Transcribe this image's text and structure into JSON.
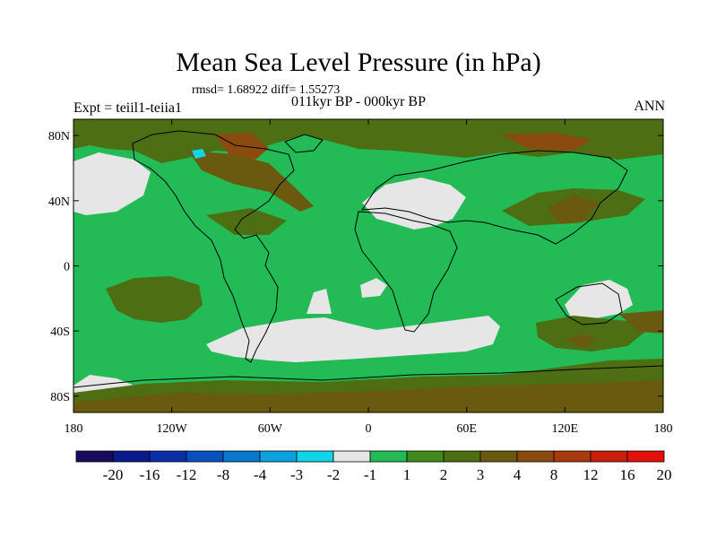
{
  "title": "Mean Sea Level Pressure (in hPa)",
  "stats": "rmsd= 1.68922 diff= 1.55273",
  "subtitle": "011kyr BP - 000kyr BP",
  "left_label": "Expt = teiil1-teiia1",
  "right_label": "ANN",
  "axes": {
    "lat_ticks": [
      {
        "label": "80N",
        "value": 80
      },
      {
        "label": "40N",
        "value": 40
      },
      {
        "label": "0",
        "value": 0
      },
      {
        "label": "40S",
        "value": -40
      },
      {
        "label": "80S",
        "value": -80
      }
    ],
    "lon_ticks": [
      {
        "label": "180",
        "value": -180
      },
      {
        "label": "120W",
        "value": -120
      },
      {
        "label": "60W",
        "value": -60
      },
      {
        "label": "0",
        "value": 0
      },
      {
        "label": "60E",
        "value": 60
      },
      {
        "label": "120E",
        "value": 120
      },
      {
        "label": "180",
        "value": 180
      }
    ],
    "lat_range": [
      -90,
      90
    ],
    "lon_range": [
      -180,
      180
    ]
  },
  "colorbar": {
    "colors": [
      "#1a0a5e",
      "#0a1a8a",
      "#0b2fa6",
      "#0a4fc0",
      "#0a78d0",
      "#0aa3e0",
      "#10d4e8",
      "#e6e6e6",
      "#22bb55",
      "#3f8a1a",
      "#4d6e12",
      "#6a5a10",
      "#8a4a10",
      "#a83a10",
      "#c8200a",
      "#e4100a"
    ],
    "labels": [
      "-20",
      "-16",
      "-12",
      "-8",
      "-4",
      "-3",
      "-2",
      "-1",
      "1",
      "2",
      "3",
      "4",
      "8",
      "12",
      "16",
      "20"
    ]
  },
  "palette": {
    "ocean": "#22bb55",
    "neutral": "#e6e6e6",
    "pos3": "#4d6e12",
    "pos4": "#6a5a10",
    "pos8": "#8a4a10",
    "neg3": "#10d4e8"
  }
}
